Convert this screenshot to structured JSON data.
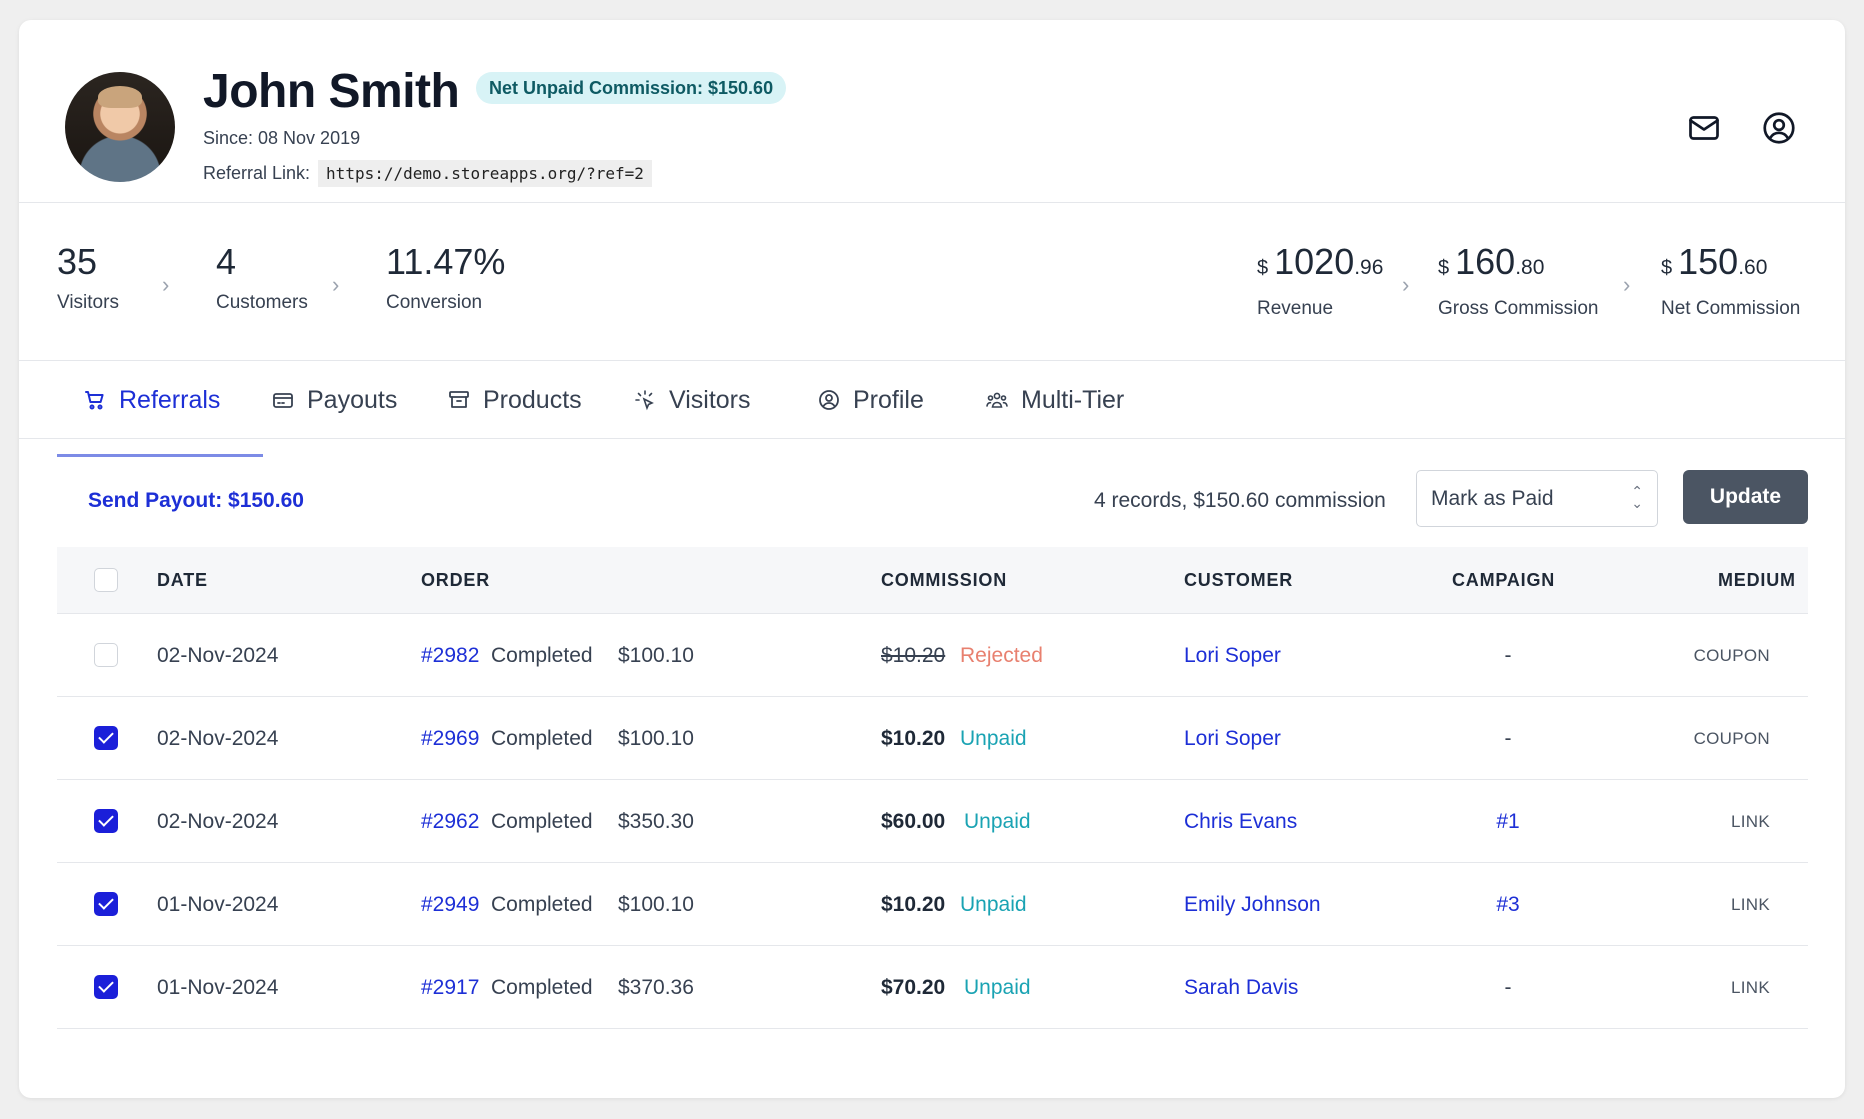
{
  "profile": {
    "name": "John Smith",
    "badge": "Net Unpaid Commission: $150.60",
    "since": "Since: 08 Nov 2019",
    "referral_label": "Referral Link:",
    "referral_link": "https://demo.storeapps.org/?ref=2"
  },
  "header_icons": [
    "mail-icon",
    "user-circle-icon"
  ],
  "stats": {
    "visitors": {
      "value": "35",
      "label": "Visitors"
    },
    "customers": {
      "value": "4",
      "label": "Customers"
    },
    "conversion": {
      "value": "11.47%",
      "label": "Conversion"
    },
    "revenue": {
      "currency": "$",
      "whole": "1020",
      "cents": ".96",
      "label": "Revenue"
    },
    "gross_commission": {
      "currency": "$",
      "whole": "160",
      "cents": ".80",
      "label": "Gross Commission"
    },
    "net_commission": {
      "currency": "$",
      "whole": "150",
      "cents": ".60",
      "label": "Net Commission"
    }
  },
  "tabs": [
    {
      "label": "Referrals",
      "icon": "cart-icon",
      "active": true
    },
    {
      "label": "Payouts",
      "icon": "wallet-icon",
      "active": false
    },
    {
      "label": "Products",
      "icon": "archive-box-icon",
      "active": false
    },
    {
      "label": "Visitors",
      "icon": "cursor-click-icon",
      "active": false
    },
    {
      "label": "Profile",
      "icon": "user-circle-icon",
      "active": false
    },
    {
      "label": "Multi-Tier",
      "icon": "users-group-icon",
      "active": false
    }
  ],
  "toolbar": {
    "send_payout": "Send Payout: $150.60",
    "records_summary": "4 records, $150.60 commission",
    "status_select": "Mark as Paid",
    "update_label": "Update"
  },
  "table": {
    "headers": [
      "DATE",
      "ORDER",
      "COMMISSION",
      "CUSTOMER",
      "CAMPAIGN",
      "MEDIUM"
    ],
    "rows": [
      {
        "checked": false,
        "date": "02-Nov-2024",
        "order": "#2982",
        "order_status": "Completed",
        "order_total": "$100.10",
        "commission": "$10.20",
        "commission_status": "Rejected",
        "customer": "Lori Soper",
        "campaign": "-",
        "medium": "COUPON"
      },
      {
        "checked": true,
        "date": "02-Nov-2024",
        "order": "#2969",
        "order_status": "Completed",
        "order_total": "$100.10",
        "commission": "$10.20",
        "commission_status": "Unpaid",
        "customer": "Lori Soper",
        "campaign": "-",
        "medium": "COUPON"
      },
      {
        "checked": true,
        "date": "02-Nov-2024",
        "order": "#2962",
        "order_status": "Completed",
        "order_total": "$350.30",
        "commission": "$60.00",
        "commission_status": "Unpaid",
        "customer": "Chris Evans",
        "campaign": "#1",
        "medium": "LINK"
      },
      {
        "checked": true,
        "date": "01-Nov-2024",
        "order": "#2949",
        "order_status": "Completed",
        "order_total": "$100.10",
        "commission": "$10.20",
        "commission_status": "Unpaid",
        "customer": "Emily Johnson",
        "campaign": "#3",
        "medium": "LINK"
      },
      {
        "checked": true,
        "date": "01-Nov-2024",
        "order": "#2917",
        "order_status": "Completed",
        "order_total": "$370.36",
        "commission": "$70.20",
        "commission_status": "Unpaid",
        "customer": "Sarah Davis",
        "campaign": "-",
        "medium": "LINK"
      }
    ]
  },
  "colors": {
    "accent": "#1d2fd6",
    "rejected": "#e8806f",
    "unpaid": "#1aa3b3",
    "badge_bg": "#d8f3f6"
  }
}
